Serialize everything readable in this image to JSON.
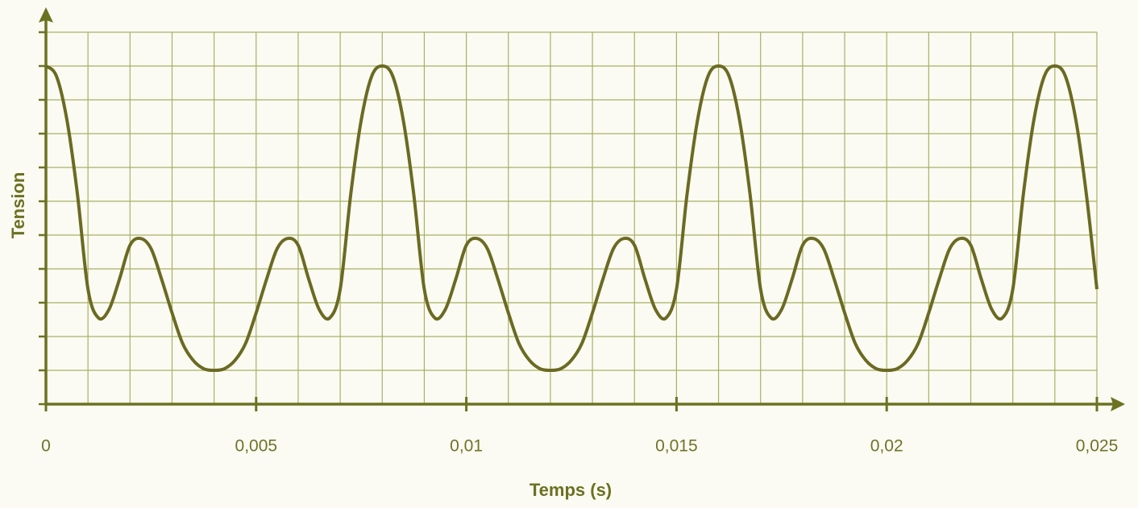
{
  "chart_data": {
    "type": "line",
    "x_label": "Temps (s)",
    "y_label": "Tension",
    "x": [
      0,
      0.00025,
      0.0005,
      0.00075,
      0.001,
      0.00125,
      0.0015,
      0.00175,
      0.002,
      0.00225,
      0.0025,
      0.00275,
      0.003,
      0.00325,
      0.0035,
      0.00375,
      0.004,
      0.00425,
      0.0045,
      0.00475,
      0.005,
      0.00525,
      0.0055,
      0.00575,
      0.006,
      0.00625,
      0.0065,
      0.00675,
      0.007,
      0.00725,
      0.0075,
      0.00775,
      0.008,
      0.00825,
      0.0085,
      0.00875,
      0.009,
      0.00925,
      0.0095,
      0.00975,
      0.01,
      0.01025,
      0.0105,
      0.01075,
      0.011,
      0.01125,
      0.0115,
      0.01175,
      0.012,
      0.01225,
      0.0125,
      0.01275,
      0.013,
      0.01325,
      0.0135,
      0.01375,
      0.014,
      0.01425,
      0.0145,
      0.01475,
      0.015,
      0.01525,
      0.0155,
      0.01575,
      0.016,
      0.01625,
      0.0165,
      0.01675,
      0.017,
      0.01725,
      0.0175,
      0.01775,
      0.018,
      0.01825,
      0.0185,
      0.01875,
      0.019,
      0.01925,
      0.0195,
      0.01975,
      0.02,
      0.02025,
      0.0205,
      0.02075,
      0.021,
      0.02125,
      0.0215,
      0.02175,
      0.022,
      0.02225,
      0.0225,
      0.02275,
      0.023,
      0.02325,
      0.0235,
      0.02375,
      0.024,
      0.02425,
      0.0245,
      0.02475,
      0.025
    ],
    "series": [
      {
        "color": "#6b6a22",
        "values": [
          10,
          9.7,
          8.4,
          6.2,
          3.4,
          2.55,
          2.8,
          3.7,
          4.7,
          4.9,
          4.6,
          3.7,
          2.7,
          1.8,
          1.3,
          1.05,
          1,
          1.05,
          1.3,
          1.8,
          2.7,
          3.7,
          4.6,
          4.9,
          4.7,
          3.7,
          2.8,
          2.55,
          3.4,
          6.2,
          8.4,
          9.7,
          10,
          9.7,
          8.4,
          6.2,
          3.4,
          2.55,
          2.8,
          3.7,
          4.7,
          4.9,
          4.6,
          3.7,
          2.7,
          1.8,
          1.3,
          1.05,
          1,
          1.05,
          1.3,
          1.8,
          2.7,
          3.7,
          4.6,
          4.9,
          4.7,
          3.7,
          2.8,
          2.55,
          3.4,
          6.2,
          8.4,
          9.7,
          10,
          9.7,
          8.4,
          6.2,
          3.4,
          2.55,
          2.8,
          3.7,
          4.7,
          4.9,
          4.6,
          3.7,
          2.7,
          1.8,
          1.3,
          1.05,
          1,
          1.05,
          1.3,
          1.8,
          2.7,
          3.7,
          4.6,
          4.9,
          4.7,
          3.7,
          2.8,
          2.55,
          3.4,
          6.2,
          8.4,
          9.7,
          10,
          9.7,
          8.4,
          6.2,
          3.4
        ]
      }
    ],
    "xlim": [
      0,
      0.025
    ],
    "xticks": [
      0,
      {
        "value": 0.005,
        "label": "0,005"
      },
      {
        "value": 0.01,
        "label": "0,01"
      },
      {
        "value": 0.015,
        "label": "0,015"
      },
      {
        "value": 0.02,
        "label": "0,02"
      },
      {
        "value": 0.025,
        "label": "0,025"
      }
    ],
    "xgrid_step": 0.001,
    "ylim": [
      0,
      11
    ],
    "yticks": [
      0,
      1,
      2,
      3,
      4,
      5,
      6,
      7,
      8,
      9,
      10,
      11
    ],
    "grid": true
  }
}
